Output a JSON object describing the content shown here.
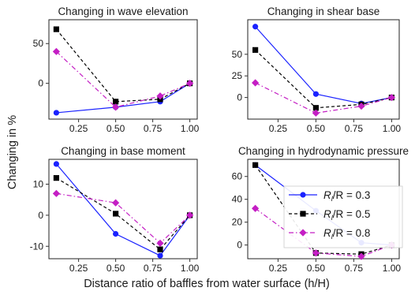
{
  "figure": {
    "ylabel": "Changing in %",
    "xlabel": "Distance ratio of baffles from water surface (h/H)"
  },
  "legend": {
    "entries": [
      {
        "base": "R",
        "sub": "l",
        "rest": "/R = 0.3",
        "color": "#1a22ff",
        "marker": "circle",
        "dash": "solid"
      },
      {
        "base": "R",
        "sub": "l",
        "rest": "/R = 0.5",
        "color": "#000000",
        "marker": "square",
        "dash": "dashed"
      },
      {
        "base": "R",
        "sub": "l",
        "rest": "/R = 0.8",
        "color": "#c41ec4",
        "marker": "diamond",
        "dash": "dashdot"
      }
    ]
  },
  "chart_data": [
    {
      "type": "line",
      "title": "Changing in wave elevation",
      "x": [
        0.1,
        0.5,
        0.8,
        1.0
      ],
      "xticks": [
        "0.25",
        "0.50",
        "0.75",
        "1.00"
      ],
      "xtick_values": [
        0.25,
        0.5,
        0.75,
        1.0
      ],
      "yticks": [
        "0",
        "50"
      ],
      "ytick_values": [
        0,
        50
      ],
      "xlim": [
        0.05,
        1.05
      ],
      "ylim": [
        -45,
        80
      ],
      "series": [
        {
          "name": "Rl/R = 0.3",
          "values": [
            -37,
            -30,
            -23,
            0
          ]
        },
        {
          "name": "Rl/R = 0.5",
          "values": [
            68,
            -23,
            -20,
            0
          ]
        },
        {
          "name": "Rl/R = 0.8",
          "values": [
            40,
            -30,
            -16,
            0
          ]
        }
      ]
    },
    {
      "type": "line",
      "title": "Changing in shear base",
      "x": [
        0.1,
        0.5,
        0.8,
        1.0
      ],
      "xticks": [
        "0.25",
        "0.50",
        "0.75",
        "1.00"
      ],
      "xtick_values": [
        0.25,
        0.5,
        0.75,
        1.0
      ],
      "yticks": [
        "0",
        "25",
        "50"
      ],
      "ytick_values": [
        0,
        25,
        50
      ],
      "xlim": [
        0.05,
        1.05
      ],
      "ylim": [
        -25,
        90
      ],
      "series": [
        {
          "name": "Rl/R = 0.3",
          "values": [
            82,
            4,
            -7,
            0
          ]
        },
        {
          "name": "Rl/R = 0.5",
          "values": [
            55,
            -12,
            -8,
            0
          ]
        },
        {
          "name": "Rl/R = 0.8",
          "values": [
            17,
            -18,
            -10,
            0
          ]
        }
      ]
    },
    {
      "type": "line",
      "title": "Changing in base moment",
      "x": [
        0.1,
        0.5,
        0.8,
        1.0
      ],
      "xticks": [
        "0.25",
        "0.50",
        "0.75",
        "1.00"
      ],
      "xtick_values": [
        0.25,
        0.5,
        0.75,
        1.0
      ],
      "yticks": [
        "-10",
        "0",
        "10"
      ],
      "ytick_values": [
        -10,
        0,
        10
      ],
      "xlim": [
        0.05,
        1.05
      ],
      "ylim": [
        -14,
        18
      ],
      "series": [
        {
          "name": "Rl/R = 0.3",
          "values": [
            16.5,
            -6,
            -13,
            0
          ]
        },
        {
          "name": "Rl/R = 0.5",
          "values": [
            12,
            0.5,
            -11,
            0
          ]
        },
        {
          "name": "Rl/R = 0.8",
          "values": [
            7,
            4,
            -9,
            0
          ]
        }
      ]
    },
    {
      "type": "line",
      "title": "Changing in hydrodynamic pressure",
      "x": [
        0.1,
        0.5,
        0.8,
        1.0
      ],
      "xticks": [
        "0.25",
        "0.50",
        "0.75",
        "1.00"
      ],
      "xtick_values": [
        0.25,
        0.5,
        0.75,
        1.0
      ],
      "yticks": [
        "0",
        "20",
        "40",
        "60"
      ],
      "ytick_values": [
        0,
        20,
        40,
        60
      ],
      "xlim": [
        0.05,
        1.05
      ],
      "ylim": [
        -12,
        75
      ],
      "series": [
        {
          "name": "Rl/R = 0.3",
          "values": [
            70,
            30,
            2,
            0
          ]
        },
        {
          "name": "Rl/R = 0.5",
          "values": [
            70,
            -7,
            -8,
            0
          ]
        },
        {
          "name": "Rl/R = 0.8",
          "values": [
            32,
            -7,
            -10,
            0
          ]
        }
      ]
    }
  ]
}
